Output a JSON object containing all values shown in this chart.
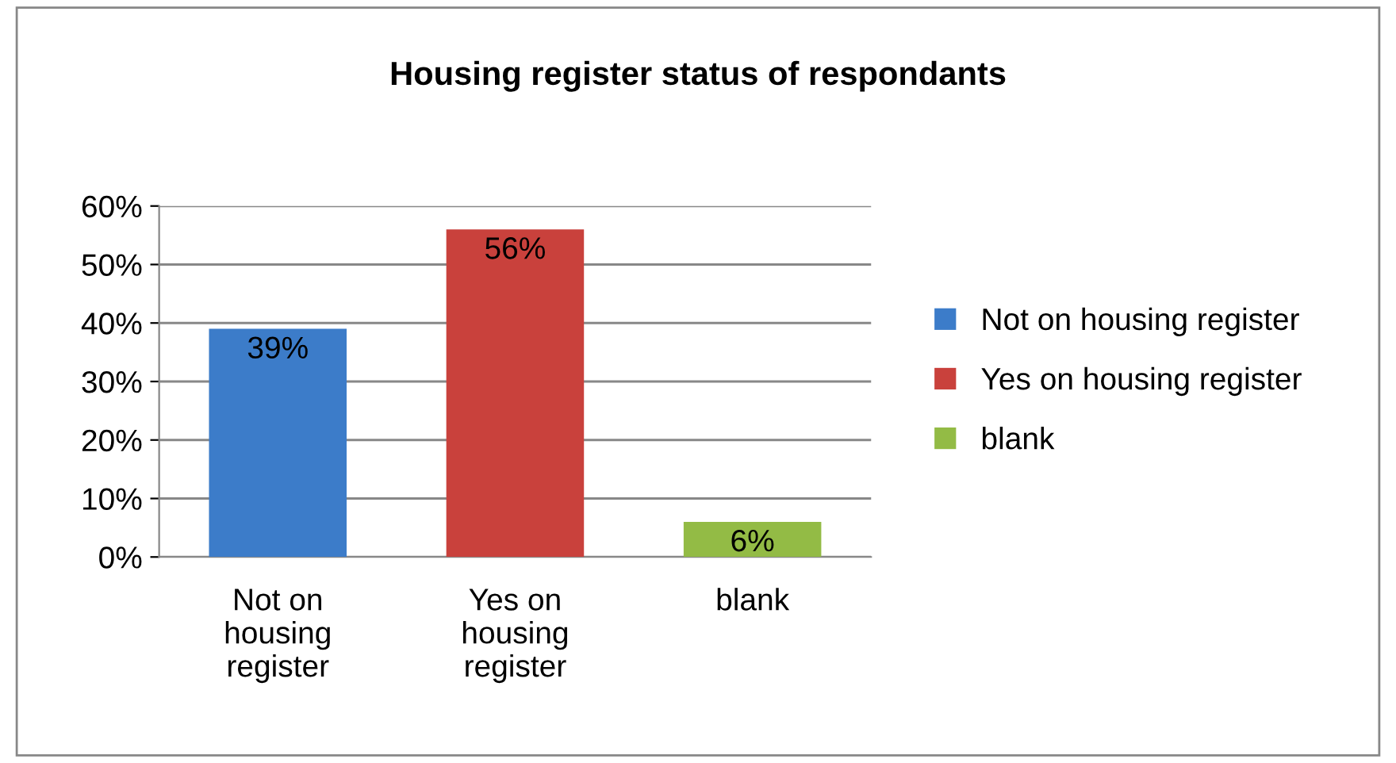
{
  "chart_data": {
    "type": "bar",
    "title": "Housing register status of respondants",
    "categories": [
      "Not on housing register",
      "Yes on housing register",
      "blank"
    ],
    "series": [
      {
        "name": "Not on housing register",
        "color": "#3c7cc9",
        "values": [
          39,
          null,
          null
        ],
        "value_labels": [
          "39%",
          null,
          null
        ]
      },
      {
        "name": "Yes on housing register",
        "color": "#c9413c",
        "values": [
          null,
          56,
          null
        ],
        "value_labels": [
          null,
          "56%",
          null
        ]
      },
      {
        "name": "blank",
        "color": "#93bb45",
        "values": [
          null,
          null,
          6
        ],
        "value_labels": [
          null,
          null,
          "6%"
        ]
      }
    ],
    "ylim": [
      0,
      60
    ],
    "yticks": [
      {
        "value": 0,
        "label": "0%"
      },
      {
        "value": 10,
        "label": "10%"
      },
      {
        "value": 20,
        "label": "20%"
      },
      {
        "value": 30,
        "label": "30%"
      },
      {
        "value": 40,
        "label": "40%"
      },
      {
        "value": 50,
        "label": "50%"
      },
      {
        "value": 60,
        "label": "60%"
      }
    ],
    "grid": "y",
    "legend": "right"
  }
}
